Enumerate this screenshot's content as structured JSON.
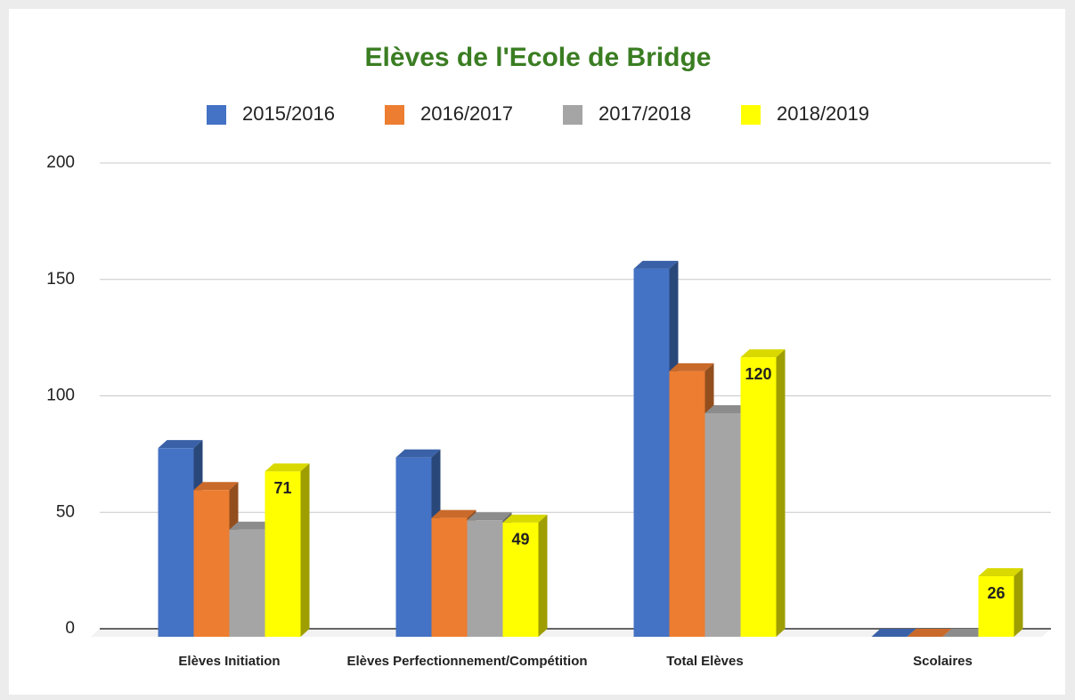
{
  "chart_data": {
    "type": "bar3d",
    "title": "Elèves de l'Ecole de Bridge",
    "categories": [
      "Elèves Initiation",
      "Elèves Perfectionnement/Compétition",
      "Total Elèves",
      "Scolaires"
    ],
    "series": [
      {
        "name": "2015/2016",
        "color": "#4472c4",
        "values": [
          81,
          77,
          158,
          0
        ]
      },
      {
        "name": "2016/2017",
        "color": "#ed7d31",
        "values": [
          63,
          51,
          114,
          0
        ]
      },
      {
        "name": "2017/2018",
        "color": "#a5a5a5",
        "values": [
          46,
          50,
          96,
          0
        ]
      },
      {
        "name": "2018/2019",
        "color": "#ffff00",
        "values": [
          71,
          49,
          120,
          26
        ],
        "data_labels": true
      }
    ],
    "ylim": [
      0,
      200
    ],
    "yticks": [
      0,
      50,
      100,
      150,
      200
    ],
    "grid": true,
    "legend": "top"
  }
}
